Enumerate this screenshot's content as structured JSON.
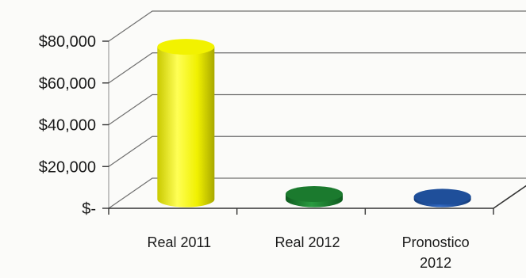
{
  "chart_data": {
    "type": "bar",
    "style": "3d-cylinder",
    "title": "",
    "xlabel": "",
    "ylabel": "",
    "categories": [
      [
        "Real 2011"
      ],
      [
        "Real 2012"
      ],
      [
        "Pronostico",
        "2012"
      ]
    ],
    "values": [
      73000,
      2500,
      1200
    ],
    "colors": [
      "#f2f200",
      "#1b7a2e",
      "#1f4f9a"
    ],
    "ylim": [
      0,
      80000
    ],
    "yticks": [
      0,
      20000,
      40000,
      60000,
      80000
    ],
    "ytick_labels": [
      "$-",
      "$20,000",
      "$40,000",
      "$60,000",
      "$80,000"
    ],
    "grid": true,
    "legend": "none"
  }
}
